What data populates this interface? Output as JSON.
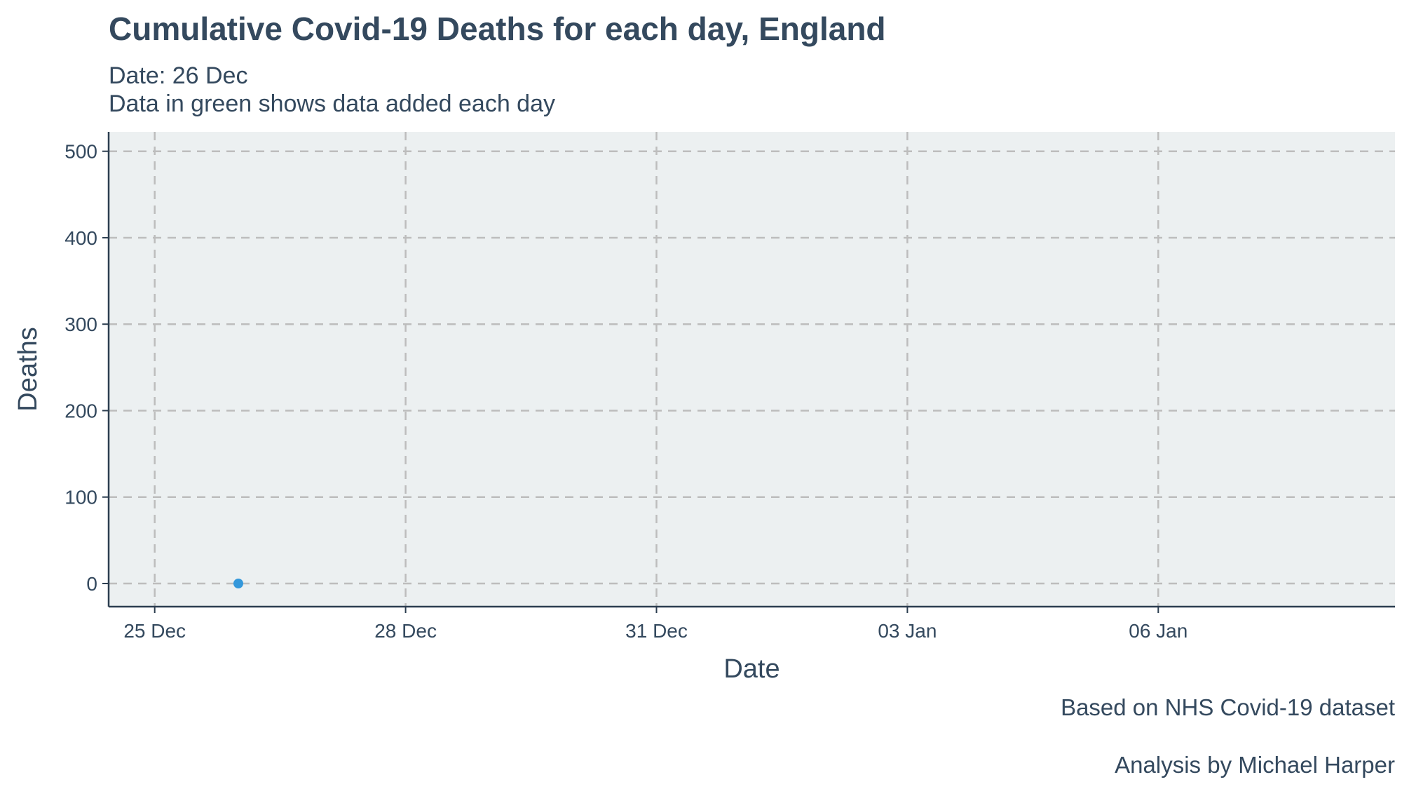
{
  "chart_data": {
    "type": "scatter",
    "title": "Cumulative Covid-19 Deaths for each day, England",
    "subtitle_lines": [
      "Date: 26 Dec",
      "Data in green shows data added each day"
    ],
    "xlabel": "Date",
    "ylabel": "Deaths",
    "x_ticks": [
      "25 Dec",
      "28 Dec",
      "31 Dec",
      "03 Jan",
      "06 Jan"
    ],
    "y_ticks": [
      0,
      100,
      200,
      300,
      400,
      500
    ],
    "ylim": [
      0,
      500
    ],
    "grid": true,
    "series": [
      {
        "color": "#3498db",
        "points": [
          {
            "x": "26 Dec",
            "y": 0
          }
        ]
      }
    ],
    "captions": [
      "Based on NHS Covid-19 dataset",
      "Analysis by Michael Harper"
    ]
  },
  "colors": {
    "panel": "#ecf0f1",
    "grid": "#bdbdbd",
    "axis": "#2c3e50",
    "point": "#3498db",
    "text": "#34495e"
  }
}
